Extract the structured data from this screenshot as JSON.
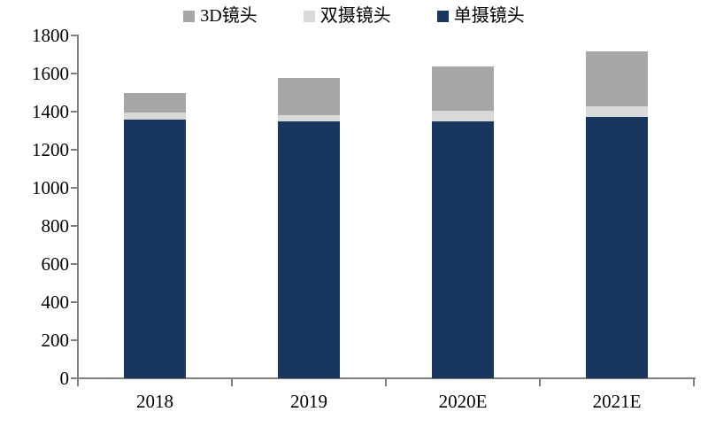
{
  "chart_data": {
    "type": "bar",
    "stacked": true,
    "title": "",
    "xlabel": "",
    "ylabel": "",
    "categories": [
      "2018",
      "2019",
      "2020E",
      "2021E"
    ],
    "series": [
      {
        "name": "单摄镜头",
        "color": "#17375e",
        "values": [
          1360,
          1350,
          1350,
          1370
        ]
      },
      {
        "name": "双摄镜头",
        "color": "#d9d9d9",
        "values": [
          35,
          30,
          55,
          60
        ]
      },
      {
        "name": "3D镜头",
        "color": "#a6a6a6",
        "values": [
          105,
          195,
          230,
          285
        ]
      }
    ],
    "totals": [
      1500,
      1575,
      1635,
      1715
    ],
    "legend": {
      "position": "top",
      "items": [
        {
          "label": "3D镜头",
          "color": "#a6a6a6"
        },
        {
          "label": "双摄镜头",
          "color": "#d9d9d9"
        },
        {
          "label": "单摄镜头",
          "color": "#17375e"
        }
      ]
    },
    "ylim": [
      0,
      1800
    ],
    "ytick_step": 200,
    "grid": false,
    "axis_color": "#7f7f7f",
    "text_color": "#000000",
    "background": "#ffffff"
  }
}
